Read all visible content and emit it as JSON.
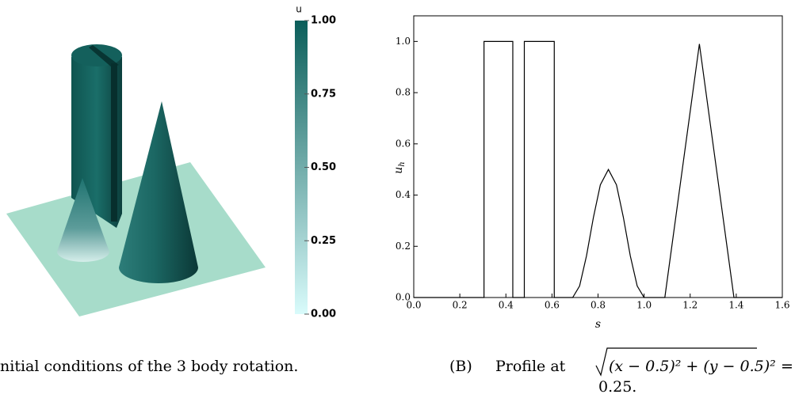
{
  "left_panel": {
    "colorbar": {
      "label": "u",
      "lim": [
        0,
        1
      ],
      "ticks": [
        {
          "value": 1,
          "label": "1.00"
        },
        {
          "value": 0.75,
          "label": "0.75"
        },
        {
          "value": 0.5,
          "label": "0.50"
        },
        {
          "value": 0.25,
          "label": "0.25"
        },
        {
          "value": 0,
          "label": "0.00"
        }
      ],
      "colors": [
        "#d9fbfb",
        "#0b5e5a"
      ]
    },
    "caption": "nitial conditions of the 3 body rotation."
  },
  "chart_data": {
    "type": "line",
    "x": [
      0,
      0.305,
      0.305,
      0.43,
      0.43,
      0.48,
      0.48,
      0.61,
      0.61,
      0.69,
      0.72,
      0.75,
      0.78,
      0.81,
      0.845,
      0.88,
      0.91,
      0.94,
      0.97,
      1.0,
      1.09,
      1.24,
      1.39,
      1.6
    ],
    "series": [
      {
        "color": "#000000",
        "values": [
          0,
          0,
          1,
          1,
          0,
          0,
          1,
          1,
          0,
          0,
          0.045,
          0.163,
          0.313,
          0.44,
          0.5,
          0.44,
          0.313,
          0.163,
          0.045,
          0,
          0,
          0.99,
          0,
          0
        ]
      }
    ],
    "xlabel": "s",
    "ylabel": "u",
    "ylabel_sub": "h",
    "xlim": [
      0,
      1.6
    ],
    "ylim": [
      0,
      1.1
    ],
    "xticks": [
      {
        "value": 0,
        "label": "0.0"
      },
      {
        "value": 0.2,
        "label": "0.2"
      },
      {
        "value": 0.4,
        "label": "0.4"
      },
      {
        "value": 0.6,
        "label": "0.6"
      },
      {
        "value": 0.8,
        "label": "0.8"
      },
      {
        "value": 1,
        "label": "1.0"
      },
      {
        "value": 1.2,
        "label": "1.2"
      },
      {
        "value": 1.4,
        "label": "1.4"
      },
      {
        "value": 1.6,
        "label": "1.6"
      }
    ],
    "yticks": [
      {
        "value": 0,
        "label": "0.0"
      },
      {
        "value": 0.2,
        "label": "0.2"
      },
      {
        "value": 0.4,
        "label": "0.4"
      },
      {
        "value": 0.6,
        "label": "0.6"
      },
      {
        "value": 0.8,
        "label": "0.8"
      },
      {
        "value": 1,
        "label": "1.0"
      }
    ]
  },
  "right_caption": {
    "tag": "(B)",
    "text": "Profile at",
    "formula": "(x − 0.5)² + (y − 0.5)²",
    "equals": "=",
    "tail": "0.25."
  }
}
